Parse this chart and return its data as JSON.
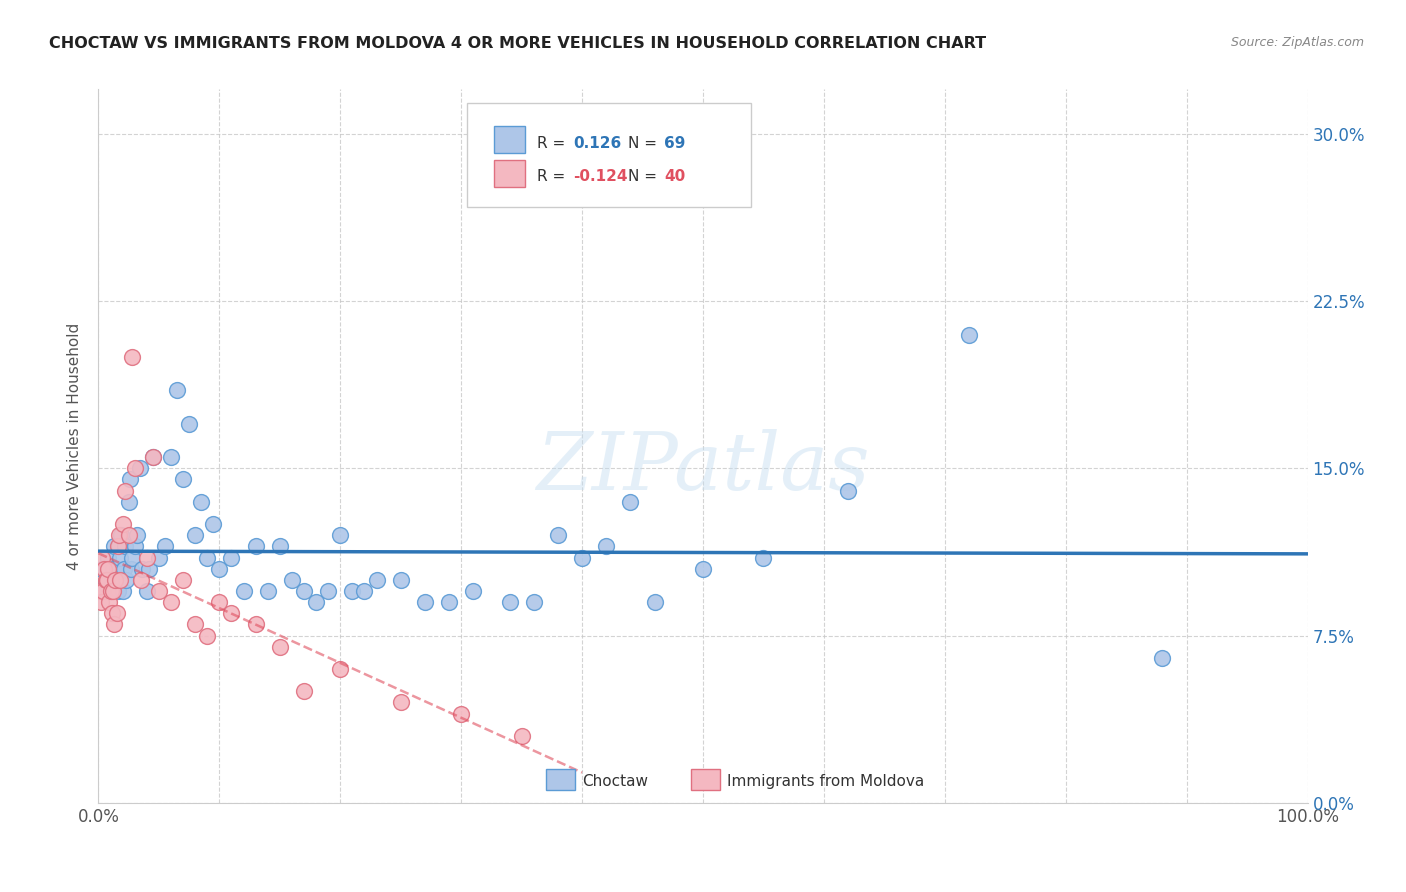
{
  "title": "CHOCTAW VS IMMIGRANTS FROM MOLDOVA 4 OR MORE VEHICLES IN HOUSEHOLD CORRELATION CHART",
  "source": "Source: ZipAtlas.com",
  "ylabel": "4 or more Vehicles in Household",
  "xlim": [
    0,
    100
  ],
  "ylim": [
    0,
    32
  ],
  "ytick_vals": [
    0,
    7.5,
    15.0,
    22.5,
    30.0
  ],
  "xtick_vals": [
    0,
    10,
    20,
    30,
    40,
    50,
    60,
    70,
    80,
    90,
    100
  ],
  "choctaw_color": "#aec6e8",
  "choctaw_edge": "#5b9bd5",
  "moldova_color": "#f4b8c1",
  "moldova_edge": "#e07080",
  "choctaw_line_color": "#2e75b6",
  "moldova_line_color": "#e05060",
  "r_choctaw": 0.126,
  "n_choctaw": 69,
  "r_moldova": -0.124,
  "n_moldova": 40,
  "watermark": "ZIPatlas",
  "background_color": "#ffffff",
  "grid_color": "#c8c8c8",
  "choctaw_x": [
    0.3,
    0.5,
    0.6,
    0.8,
    1.0,
    1.1,
    1.2,
    1.3,
    1.4,
    1.5,
    1.6,
    1.7,
    1.8,
    1.9,
    2.0,
    2.1,
    2.2,
    2.3,
    2.5,
    2.6,
    2.7,
    2.8,
    3.0,
    3.2,
    3.4,
    3.6,
    4.0,
    4.2,
    4.5,
    5.0,
    5.5,
    6.0,
    6.5,
    7.0,
    7.5,
    8.0,
    8.5,
    9.0,
    9.5,
    10.0,
    11.0,
    12.0,
    13.0,
    14.0,
    15.0,
    16.0,
    17.0,
    18.0,
    19.0,
    20.0,
    21.0,
    22.0,
    23.0,
    25.0,
    27.0,
    29.0,
    31.0,
    34.0,
    36.0,
    38.0,
    40.0,
    42.0,
    44.0,
    46.0,
    50.0,
    55.0,
    62.0,
    72.0,
    88.0
  ],
  "choctaw_y": [
    10.5,
    9.5,
    9.8,
    11.0,
    9.5,
    10.0,
    10.5,
    11.5,
    10.0,
    10.5,
    9.5,
    11.5,
    11.0,
    12.0,
    9.5,
    10.5,
    11.5,
    10.0,
    13.5,
    14.5,
    10.5,
    11.0,
    11.5,
    12.0,
    15.0,
    10.5,
    9.5,
    10.5,
    15.5,
    11.0,
    11.5,
    15.5,
    18.5,
    14.5,
    17.0,
    12.0,
    13.5,
    11.0,
    12.5,
    10.5,
    11.0,
    9.5,
    11.5,
    9.5,
    11.5,
    10.0,
    9.5,
    9.0,
    9.5,
    12.0,
    9.5,
    9.5,
    10.0,
    10.0,
    9.0,
    9.0,
    9.5,
    9.0,
    9.0,
    12.0,
    11.0,
    11.5,
    13.5,
    9.0,
    10.5,
    11.0,
    14.0,
    21.0,
    6.5
  ],
  "moldova_x": [
    0.1,
    0.2,
    0.3,
    0.4,
    0.5,
    0.6,
    0.7,
    0.8,
    0.9,
    1.0,
    1.1,
    1.2,
    1.3,
    1.4,
    1.5,
    1.6,
    1.7,
    1.8,
    2.0,
    2.2,
    2.5,
    2.8,
    3.0,
    3.5,
    4.0,
    4.5,
    5.0,
    6.0,
    7.0,
    8.0,
    9.0,
    10.0,
    11.0,
    13.0,
    15.0,
    17.0,
    20.0,
    25.0,
    30.0,
    35.0
  ],
  "moldova_y": [
    9.5,
    9.0,
    11.0,
    9.5,
    10.5,
    10.0,
    10.0,
    10.5,
    9.0,
    9.5,
    8.5,
    9.5,
    8.0,
    10.0,
    8.5,
    11.5,
    12.0,
    10.0,
    12.5,
    14.0,
    12.0,
    20.0,
    15.0,
    10.0,
    11.0,
    15.5,
    9.5,
    9.0,
    10.0,
    8.0,
    7.5,
    9.0,
    8.5,
    8.0,
    7.0,
    5.0,
    6.0,
    4.5,
    4.0,
    3.0
  ]
}
